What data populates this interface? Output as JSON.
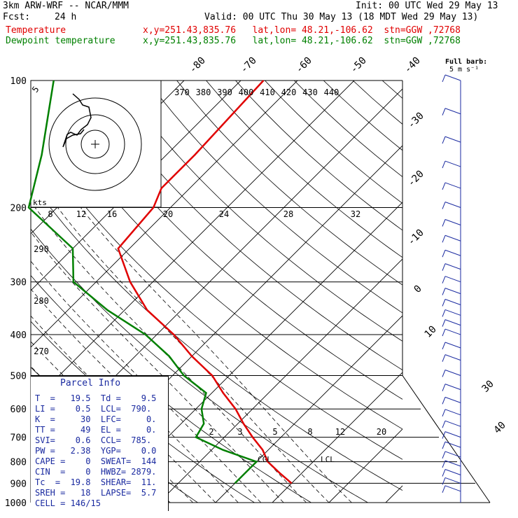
{
  "header": {
    "model": "3km ARW-WRF -- NCAR/MMM",
    "init": "Init: 00 UTC Wed 29 May 13",
    "fcst_label": "Fcst:",
    "fcst_value": "24 h",
    "valid": "Valid: 00 UTC Thu 30 May 13 (18 MDT Wed 29 May 13)",
    "temp_label": "Temperature",
    "temp_info": "x,y=251.43,835.76   lat,lon= 48.21,-106.62  stn=GGW ,72768",
    "dew_label": "Dewpoint temperature",
    "dew_info": "x,y=251.43,835.76   lat,lon= 48.21,-106.62  stn=GGW ,72768",
    "barb_label": "Full barb:",
    "barb_unit": "5 m s⁻¹"
  },
  "colors": {
    "temperature": "#e00000",
    "dewpoint": "#008000",
    "barbs": "#1a2aa0",
    "info": "#1a2aa0"
  },
  "chart_data": {
    "type": "line",
    "pressure_levels": [
      100,
      200,
      300,
      400,
      500,
      600,
      700,
      800,
      900,
      1000
    ],
    "skewed_isotherm_labels": [
      -80,
      -70,
      -60,
      -50,
      -40,
      -30,
      -20,
      -10,
      0,
      10,
      30,
      40
    ],
    "theta_labels_top": [
      370,
      380,
      390,
      400,
      410,
      420,
      430,
      440
    ],
    "theta_labels_left": [
      290,
      280,
      270
    ],
    "hodograph_speed_labels": [
      8,
      12,
      16,
      20,
      24,
      28,
      32
    ],
    "hodograph_unit": "kts",
    "hodograph_ring_label": "5",
    "mixing_ratio_labels": [
      2,
      3,
      5,
      8,
      12,
      20
    ],
    "lcl_label": "LCL",
    "ccl_label": "CCL",
    "series": [
      {
        "name": "Temperature",
        "pressure": [
          100,
          150,
          180,
          200,
          250,
          300,
          350,
          400,
          450,
          500,
          550,
          600,
          650,
          700,
          750,
          800,
          850,
          900
        ],
        "temp": [
          -56,
          -55,
          -55,
          -53,
          -52,
          -44,
          -36,
          -27,
          -20,
          -13,
          -8,
          -3,
          1,
          5,
          9,
          12,
          16,
          20
        ]
      },
      {
        "name": "Dewpoint temperature",
        "pressure": [
          100,
          150,
          200,
          250,
          300,
          350,
          400,
          450,
          500,
          550,
          600,
          650,
          700,
          750,
          800,
          850,
          900
        ],
        "temp": [
          -93,
          -82,
          -75,
          -60,
          -54,
          -43,
          -32,
          -24,
          -18,
          -11,
          -9,
          -6,
          -5,
          2,
          10,
          10,
          10
        ]
      }
    ],
    "wind_barbs": {
      "pressure": [
        100,
        120,
        140,
        160,
        180,
        200,
        220,
        240,
        260,
        280,
        300,
        320,
        340,
        360,
        380,
        400,
        430,
        460,
        500,
        540,
        580,
        620,
        660,
        700,
        740,
        780,
        820,
        860,
        900,
        940
      ]
    }
  },
  "parcel": {
    "title": "Parcel Info",
    "rows": [
      "T  =   19.5  Td =    9.5",
      "LI =    0.5  LCL=  790.",
      "K  =     30  LFC=     0.",
      "TT =     49  EL =     0.",
      "SVI=    0.6  CCL=  785.",
      "PW =   2.38  YGP=    0.0",
      "CAPE =    0  SWEAT=  144",
      "CIN  =    0  HWBZ= 2879.",
      "Tc  =  19.8  SHEAR=  11.",
      "SREH =   18  LAPSE=  5.7",
      "CELL = 146/15"
    ]
  }
}
